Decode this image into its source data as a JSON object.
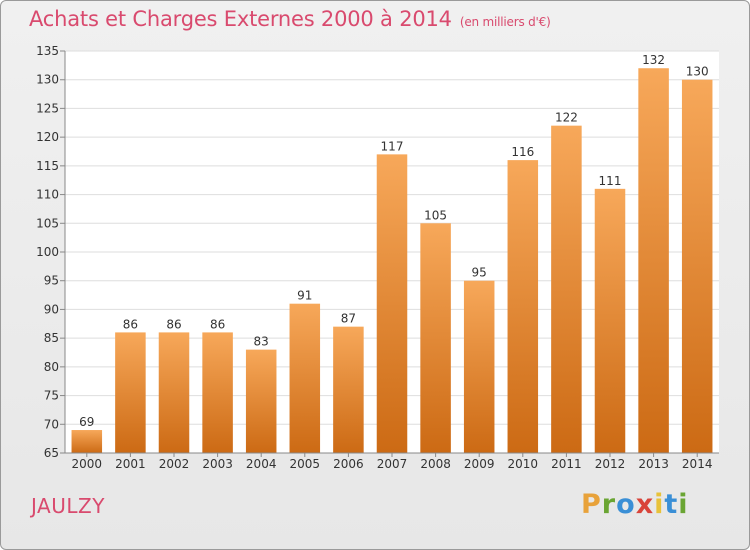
{
  "header": {
    "title": "Achats et Charges Externes 2000 à 2014",
    "unit": "(en milliers d'€)"
  },
  "footer": {
    "commune": "JAULZY",
    "logo_letters": [
      "P",
      "r",
      "o",
      "x",
      "i",
      "t",
      "i"
    ],
    "logo_colors": [
      "#e8a23a",
      "#6aa533",
      "#3a8fd6",
      "#d9443a",
      "#e8c23a",
      "#3a8fd6",
      "#6aa533"
    ]
  },
  "chart_data": {
    "type": "bar",
    "categories": [
      "2000",
      "2001",
      "2002",
      "2003",
      "2004",
      "2005",
      "2006",
      "2007",
      "2008",
      "2009",
      "2010",
      "2011",
      "2012",
      "2013",
      "2014"
    ],
    "values": [
      69,
      86,
      86,
      86,
      83,
      91,
      87,
      117,
      105,
      95,
      116,
      122,
      111,
      132,
      130
    ],
    "data_labels": [
      "69",
      "86",
      "86",
      "86",
      "83",
      "91",
      "87",
      "117",
      "105",
      "95",
      "116",
      "122",
      "111",
      "132",
      "130"
    ],
    "title": "Achats et Charges Externes 2000 à 2014",
    "xlabel": "",
    "ylabel": "",
    "ylim": [
      65,
      135
    ],
    "yticks": [
      65,
      70,
      75,
      80,
      85,
      90,
      95,
      100,
      105,
      110,
      115,
      120,
      125,
      130,
      135
    ],
    "grid": true,
    "bar_color_light": "#f7a85a",
    "bar_color_dark": "#cc6a14",
    "title_color": "#d94a6e"
  }
}
